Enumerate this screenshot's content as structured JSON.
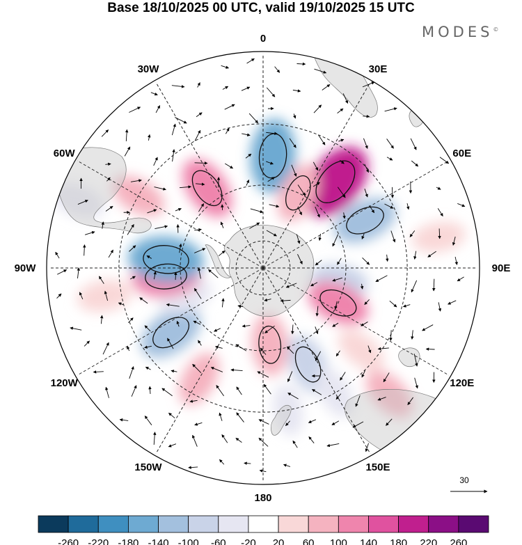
{
  "title": "Base 18/10/2025 00 UTC, valid 19/10/2025 15 UTC",
  "brand": "MODES",
  "brand_mark": "©",
  "chart_data": {
    "type": "heatmap",
    "projection": "south polar stereographic",
    "variable": "anomaly field with wind vectors",
    "longitude_labels": [
      "0",
      "30E",
      "60E",
      "90E",
      "120E",
      "150E",
      "180",
      "150W",
      "120W",
      "90W",
      "60W",
      "30W"
    ],
    "colorbar": {
      "ticks": [
        "-260",
        "-220",
        "-180",
        "-140",
        "-100",
        "-60",
        "-20",
        "20",
        "60",
        "100",
        "140",
        "180",
        "220",
        "260"
      ],
      "colors": [
        "#0b3a5c",
        "#1f6b9b",
        "#3f8fc0",
        "#6eaad2",
        "#a3c0de",
        "#c9d3e8",
        "#e6e6f2",
        "#ffffff",
        "#f9d8d8",
        "#f5b3c0",
        "#ef85ad",
        "#e0529f",
        "#c01f8e",
        "#8b0f86",
        "#5a0a72"
      ]
    },
    "vector_reference": {
      "value": "30"
    },
    "anomaly_centers": [
      {
        "lon": 5,
        "lat": -50,
        "value": -160
      },
      {
        "lon": 40,
        "lat": -50,
        "value": 200
      },
      {
        "lon": 25,
        "lat": -60,
        "value": 80
      },
      {
        "lon": 65,
        "lat": -50,
        "value": -110
      },
      {
        "lon": 100,
        "lat": -62,
        "value": -70
      },
      {
        "lon": 115,
        "lat": -60,
        "value": 100
      },
      {
        "lon": 130,
        "lat": -45,
        "value": 40
      },
      {
        "lon": 155,
        "lat": -52,
        "value": -90
      },
      {
        "lon": 175,
        "lat": -62,
        "value": 90
      },
      {
        "lon": 150,
        "lat": -40,
        "value": -40
      },
      {
        "lon": 135,
        "lat": -30,
        "value": 60
      },
      {
        "lon": -150,
        "lat": -45,
        "value": 60
      },
      {
        "lon": -125,
        "lat": -50,
        "value": -120
      },
      {
        "lon": -110,
        "lat": -60,
        "value": -50
      },
      {
        "lon": -95,
        "lat": -55,
        "value": 130
      },
      {
        "lon": -85,
        "lat": -55,
        "value": -170
      },
      {
        "lon": -100,
        "lat": -35,
        "value": 50
      },
      {
        "lon": -60,
        "lat": -40,
        "value": 60
      },
      {
        "lon": -35,
        "lat": -55,
        "value": 110
      },
      {
        "lon": -70,
        "lat": -25,
        "value": -50
      },
      {
        "lon": 80,
        "lat": -30,
        "value": 40
      },
      {
        "lon": 170,
        "lat": -40,
        "value": -30
      }
    ]
  }
}
